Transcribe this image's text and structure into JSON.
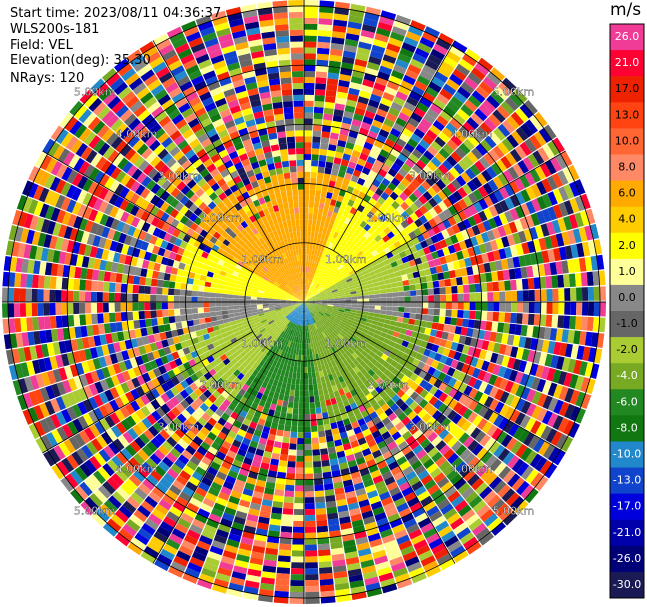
{
  "header": {
    "start_time": "Start time: 2023/08/11 04:36:37",
    "site": "WLS200s-181",
    "field": "Field: VEL",
    "elevation": "Elevation(deg): 35.30",
    "nrays": "NRays: 120"
  },
  "chart_data": {
    "type": "heatmap",
    "projection": "polar-ppi",
    "field": "VEL",
    "units": "m/s",
    "rays": 120,
    "range_rings_km": [
      1.0,
      2.0,
      3.0,
      4.0,
      5.0
    ],
    "max_range_km": 5.1,
    "ring_labels": [
      "1.00km",
      "2.00km",
      "3.00km",
      "4.00km",
      "5.00km"
    ],
    "colorbar": {
      "tick_labels": [
        "26.0",
        "21.0",
        "17.0",
        "13.0",
        "10.0",
        "8.0",
        "6.0",
        "4.0",
        "2.0",
        "1.0",
        "0.0",
        "-1.0",
        "-2.0",
        "-4.0",
        "-6.0",
        "-8.0",
        "-10.0",
        "-13.0",
        "-17.0",
        "-21.0",
        "-26.0",
        "-30.0"
      ],
      "colors": [
        "#f03c96",
        "#ff0033",
        "#ee2200",
        "#ff4411",
        "#ff6633",
        "#ff8866",
        "#ffaa00",
        "#ffcc00",
        "#ffff00",
        "#ffff99",
        "#888888",
        "#666666",
        "#aacc33",
        "#77aa22",
        "#228822",
        "#117711",
        "#2288cc",
        "#1144cc",
        "#0000dd",
        "#0000aa",
        "#000077",
        "#1a1a55"
      ]
    },
    "pattern": {
      "clean_range_km": 2.2,
      "north_half_sign": "positive",
      "south_half_sign": "negative"
    }
  }
}
